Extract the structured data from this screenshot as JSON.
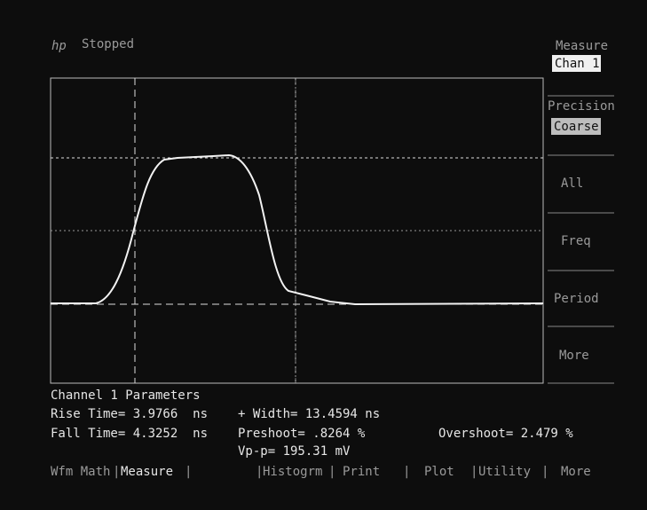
{
  "header": {
    "logo": "hp",
    "status": "Stopped"
  },
  "softkeys": [
    {
      "label": "Measure",
      "value": "Chan 1"
    },
    {
      "label": "Precision",
      "value": "Coarse"
    },
    {
      "label": "All"
    },
    {
      "label": "Freq"
    },
    {
      "label": "Period"
    },
    {
      "label": "More"
    }
  ],
  "parameters": {
    "title": "Channel 1 Parameters",
    "rise_time": "Rise Time= 3.9766  ns",
    "fall_time": "Fall Time= 4.3252  ns",
    "width": "+ Width= 13.4594 ns",
    "preshoot": "Preshoot= .8264 %",
    "vpp": "Vp-p= 195.31 mV",
    "overshoot": "Overshoot= 2.479 %"
  },
  "menu": [
    "Wfm Math",
    "Measure",
    "Histogrm",
    "Print",
    "Plot",
    "Utility",
    "More"
  ]
}
